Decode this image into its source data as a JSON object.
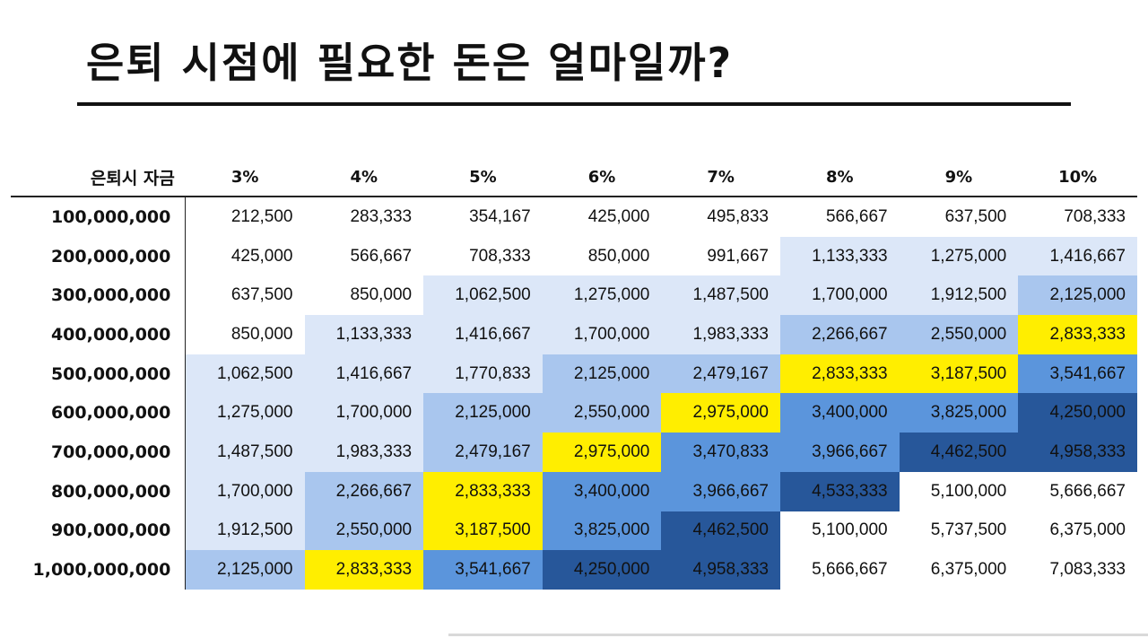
{
  "title": "은퇴 시점에 필요한 돈은 얼마일까?",
  "table": {
    "corner_label": "은퇴시 자금",
    "rates": [
      "3%",
      "4%",
      "5%",
      "6%",
      "7%",
      "8%",
      "9%",
      "10%"
    ],
    "rows": [
      {
        "fund": "100,000,000",
        "values": [
          "212,500",
          "283,333",
          "354,167",
          "425,000",
          "495,833",
          "566,667",
          "637,500",
          "708,333"
        ],
        "shades": [
          "w",
          "w",
          "w",
          "w",
          "w",
          "w",
          "w",
          "w"
        ]
      },
      {
        "fund": "200,000,000",
        "values": [
          "425,000",
          "566,667",
          "708,333",
          "850,000",
          "991,667",
          "1,133,333",
          "1,275,000",
          "1,416,667"
        ],
        "shades": [
          "w",
          "w",
          "w",
          "w",
          "w",
          "l1",
          "l1",
          "l1"
        ]
      },
      {
        "fund": "300,000,000",
        "values": [
          "637,500",
          "850,000",
          "1,062,500",
          "1,275,000",
          "1,487,500",
          "1,700,000",
          "1,912,500",
          "2,125,000"
        ],
        "shades": [
          "w",
          "w",
          "l1",
          "l1",
          "l1",
          "l1",
          "l1",
          "l2"
        ]
      },
      {
        "fund": "400,000,000",
        "values": [
          "850,000",
          "1,133,333",
          "1,416,667",
          "1,700,000",
          "1,983,333",
          "2,266,667",
          "2,550,000",
          "2,833,333"
        ],
        "shades": [
          "w",
          "l1",
          "l1",
          "l1",
          "l1",
          "l2",
          "l2",
          "y"
        ]
      },
      {
        "fund": "500,000,000",
        "values": [
          "1,062,500",
          "1,416,667",
          "1,770,833",
          "2,125,000",
          "2,479,167",
          "2,833,333",
          "3,187,500",
          "3,541,667"
        ],
        "shades": [
          "l1",
          "l1",
          "l1",
          "l2",
          "l2",
          "y",
          "y",
          "m"
        ]
      },
      {
        "fund": "600,000,000",
        "values": [
          "1,275,000",
          "1,700,000",
          "2,125,000",
          "2,550,000",
          "2,975,000",
          "3,400,000",
          "3,825,000",
          "4,250,000"
        ],
        "shades": [
          "l1",
          "l1",
          "l2",
          "l2",
          "y",
          "m",
          "m",
          "d"
        ]
      },
      {
        "fund": "700,000,000",
        "values": [
          "1,487,500",
          "1,983,333",
          "2,479,167",
          "2,975,000",
          "3,470,833",
          "3,966,667",
          "4,462,500",
          "4,958,333"
        ],
        "shades": [
          "l1",
          "l1",
          "l2",
          "y",
          "m",
          "m",
          "d",
          "d"
        ]
      },
      {
        "fund": "800,000,000",
        "values": [
          "1,700,000",
          "2,266,667",
          "2,833,333",
          "3,400,000",
          "3,966,667",
          "4,533,333",
          "5,100,000",
          "5,666,667"
        ],
        "shades": [
          "l1",
          "l2",
          "y",
          "m",
          "m",
          "d",
          "w",
          "w"
        ]
      },
      {
        "fund": "900,000,000",
        "values": [
          "1,912,500",
          "2,550,000",
          "3,187,500",
          "3,825,000",
          "4,462,500",
          "5,100,000",
          "5,737,500",
          "6,375,000"
        ],
        "shades": [
          "l1",
          "l2",
          "y",
          "m",
          "d",
          "w",
          "w",
          "w"
        ]
      },
      {
        "fund": "1,000,000,000",
        "values": [
          "2,125,000",
          "2,833,333",
          "3,541,667",
          "4,250,000",
          "4,958,333",
          "5,666,667",
          "6,375,000",
          "7,083,333"
        ],
        "shades": [
          "l2",
          "y",
          "m",
          "d",
          "d",
          "w",
          "w",
          "w"
        ]
      }
    ]
  },
  "shade_colors": {
    "w": "#ffffff",
    "l1": "#dce7f8",
    "l2": "#a9c6ee",
    "y": "#ffee00",
    "m": "#5b95dc",
    "d": "#27579a"
  }
}
